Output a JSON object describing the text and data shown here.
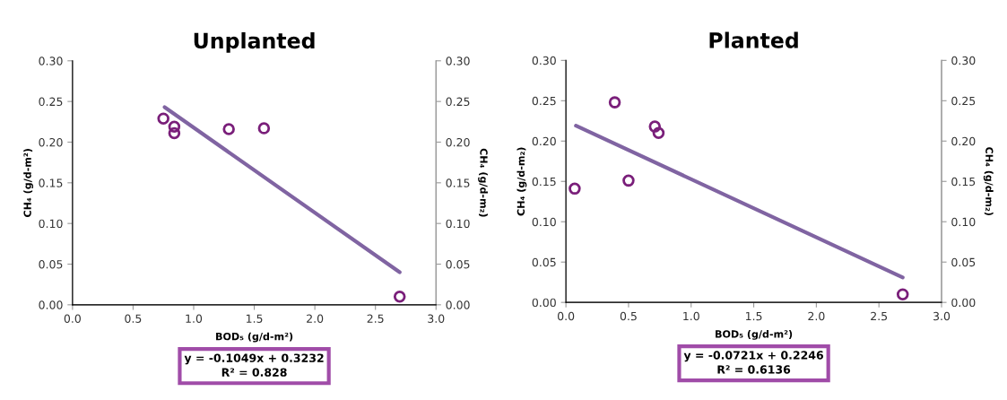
{
  "chart_data": [
    {
      "type": "scatter",
      "title": "Unplanted",
      "xlabel": "BOD₅ (g/d-m²)",
      "ylabel": "CH₄ (g/d-m²)",
      "y2label": "CH₄ (g/d-m₂)",
      "xlim": [
        0,
        3
      ],
      "xticks": [
        {
          "value": 0,
          "label": "0.0"
        },
        {
          "value": 0.5,
          "label": "0.5"
        },
        {
          "value": 1,
          "label": "1.0"
        },
        {
          "value": 1.5,
          "label": "1.5"
        },
        {
          "value": 2,
          "label": "2.0"
        },
        {
          "value": 2.5,
          "label": "2.5"
        },
        {
          "value": 3,
          "label": "3.0"
        }
      ],
      "ylim": [
        0,
        0.3
      ],
      "yticks": [
        {
          "value": 0,
          "label": "0.00"
        },
        {
          "value": 0.05,
          "label": "0.05"
        },
        {
          "value": 0.1,
          "label": "0.10"
        },
        {
          "value": 0.15,
          "label": "0.15"
        },
        {
          "value": 0.2,
          "label": "0.20"
        },
        {
          "value": 0.25,
          "label": "0.25"
        },
        {
          "value": 0.3,
          "label": "0.30"
        }
      ],
      "y2lim": [
        0,
        0.3
      ],
      "y2ticks": [
        {
          "value": 0,
          "label": "0.00"
        },
        {
          "value": 0.05,
          "label": "0.05"
        },
        {
          "value": 0.1,
          "label": "0.10"
        },
        {
          "value": 0.15,
          "label": "0.15"
        },
        {
          "value": 0.2,
          "label": "0.20"
        },
        {
          "value": 0.25,
          "label": "0.25"
        },
        {
          "value": 0.3,
          "label": "0.30"
        }
      ],
      "grid": false,
      "legend": false,
      "series": [
        {
          "marker": "circle",
          "color": "#7a1f7a",
          "x": [
            0.75,
            0.84,
            0.84,
            1.29,
            1.58,
            2.7
          ],
          "values": [
            0.229,
            0.219,
            0.211,
            0.216,
            0.217,
            0.01
          ]
        },
        {
          "type": "line",
          "marker": "none",
          "line_style": "solid",
          "color": "#8064a2",
          "x": [
            0.76,
            2.7
          ],
          "values": [
            0.243,
            0.04
          ]
        }
      ],
      "annotations": [
        "y = -0.1049x + 0.3232",
        "R² = 0.828"
      ]
    },
    {
      "type": "scatter",
      "title": "Planted",
      "xlabel": "BOD₅ (g/d-m²)",
      "ylabel": "CH₄ (g/d-m₂)",
      "y2label": "CH₄ (g/d-m₂)",
      "xlim": [
        0,
        3
      ],
      "xticks": [
        {
          "value": 0,
          "label": "0.0"
        },
        {
          "value": 0.5,
          "label": "0.5"
        },
        {
          "value": 1,
          "label": "1.0"
        },
        {
          "value": 1.5,
          "label": "1.5"
        },
        {
          "value": 2,
          "label": "2.0"
        },
        {
          "value": 2.5,
          "label": "2.5"
        },
        {
          "value": 3,
          "label": "3.0"
        }
      ],
      "ylim": [
        0,
        0.3
      ],
      "yticks": [
        {
          "value": 0,
          "label": "0.00"
        },
        {
          "value": 0.05,
          "label": "0.05"
        },
        {
          "value": 0.1,
          "label": "0.10"
        },
        {
          "value": 0.15,
          "label": "0.15"
        },
        {
          "value": 0.2,
          "label": "0.20"
        },
        {
          "value": 0.25,
          "label": "0.25"
        },
        {
          "value": 0.3,
          "label": "0.30"
        }
      ],
      "y2lim": [
        0,
        0.3
      ],
      "y2ticks": [
        {
          "value": 0,
          "label": "0.00"
        },
        {
          "value": 0.05,
          "label": "0.05"
        },
        {
          "value": 0.1,
          "label": "0.10"
        },
        {
          "value": 0.15,
          "label": "0.15"
        },
        {
          "value": 0.2,
          "label": "0.20"
        },
        {
          "value": 0.25,
          "label": "0.25"
        },
        {
          "value": 0.3,
          "label": "0.30"
        }
      ],
      "grid": false,
      "legend": false,
      "series": [
        {
          "marker": "circle",
          "color": "#7a1f7a",
          "x": [
            0.07,
            0.39,
            0.5,
            0.71,
            0.74,
            2.69
          ],
          "values": [
            0.141,
            0.248,
            0.151,
            0.218,
            0.21,
            0.01
          ]
        },
        {
          "type": "line",
          "marker": "none",
          "line_style": "solid",
          "color": "#8064a2",
          "x": [
            0.08,
            2.69
          ],
          "values": [
            0.219,
            0.031
          ]
        }
      ],
      "annotations": [
        "y = -0.0721x + 0.2246",
        "R² = 0.6136"
      ]
    }
  ]
}
